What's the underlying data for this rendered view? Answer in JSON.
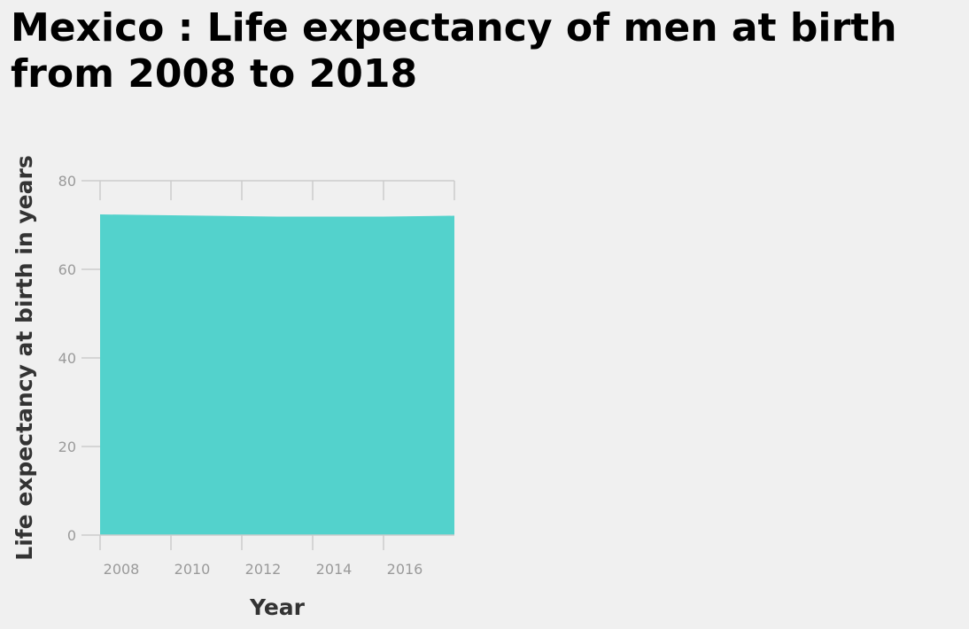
{
  "chart_data": {
    "type": "area",
    "title": "Mexico : Life expectancy of men at birth from 2008 to 2018",
    "xlabel": "Year",
    "ylabel": "Life expectancy at birth in years",
    "x": [
      2008,
      2009,
      2010,
      2011,
      2012,
      2013,
      2014,
      2015,
      2016,
      2017,
      2018
    ],
    "values": [
      72.4,
      72.3,
      72.2,
      72.1,
      72.0,
      71.9,
      71.9,
      71.9,
      71.9,
      72.0,
      72.1
    ],
    "xlim": [
      2008,
      2018
    ],
    "ylim": [
      0,
      80
    ],
    "x_ticks": [
      "2008",
      "2010",
      "2012",
      "2014",
      "2016"
    ],
    "y_ticks": [
      "0",
      "20",
      "40",
      "60",
      "80"
    ],
    "grid": false,
    "legend": "none",
    "fill_color": "#53d2cc",
    "axis_color": "#cccccc"
  }
}
